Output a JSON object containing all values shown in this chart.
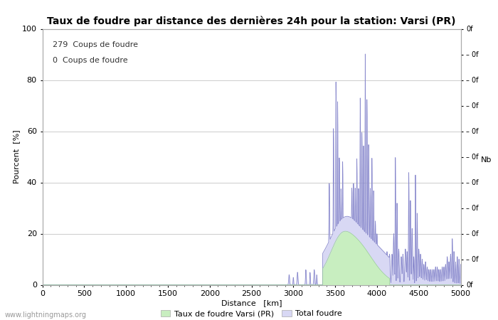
{
  "title": "Taux de foudre par distance des dernières 24h pour la station: Varsi (PR)",
  "xlabel": "Distance   [km]",
  "ylabel_left": "Pourcent  [%]",
  "ylabel_right": "Nb",
  "annotation_line1": "279  Coups de foudre",
  "annotation_line2": "0  Coups de foudre",
  "legend_label1": "Taux de foudre Varsi (PR)",
  "legend_label2": "Total foudre",
  "watermark": "www.lightningmaps.org",
  "xlim": [
    0,
    5000
  ],
  "ylim": [
    0,
    100
  ],
  "xticks": [
    0,
    500,
    1000,
    1500,
    2000,
    2500,
    3000,
    3500,
    4000,
    4500,
    5000
  ],
  "yticks_left": [
    0,
    20,
    40,
    60,
    80,
    100
  ],
  "background_color": "#ffffff",
  "fill_color_green": "#c8eec0",
  "fill_color_blue": "#d8d8f4",
  "line_color": "#8888cc",
  "grid_color": "#cccccc",
  "title_fontsize": 10,
  "axis_fontsize": 8,
  "tick_fontsize": 8,
  "annotation_fontsize": 8
}
